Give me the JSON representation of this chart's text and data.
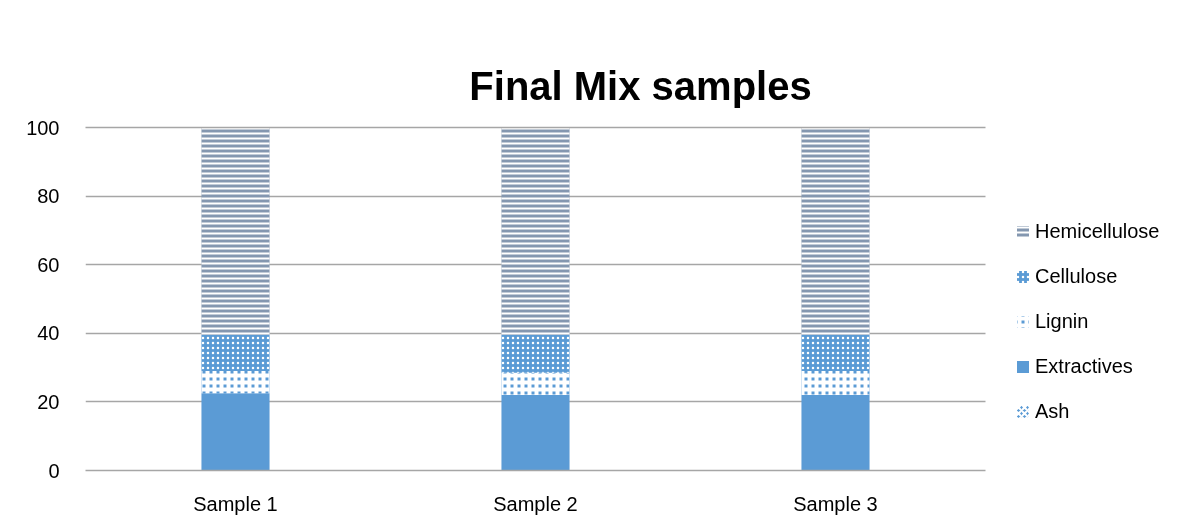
{
  "chart_data": {
    "type": "bar",
    "title": "Final Mix samples",
    "categories": [
      "Sample 1",
      "Sample 2",
      "Sample 3"
    ],
    "stacked": true,
    "series": [
      {
        "name": "Ash",
        "color": "#5b9bd5",
        "values": [
          0,
          0,
          0
        ]
      },
      {
        "name": "Extractives",
        "color": "#5b9bd5",
        "values": [
          22.5,
          22,
          22
        ]
      },
      {
        "name": "Lignin",
        "color": "#5b9bd5",
        "values": [
          6.5,
          6.5,
          7
        ]
      },
      {
        "name": "Cellulose",
        "color": "#5b9bd5",
        "values": [
          10.5,
          11,
          10.5
        ]
      },
      {
        "name": "Hemicellulose",
        "color": "#8497b0",
        "values": [
          60.5,
          60.5,
          60.5
        ]
      }
    ],
    "ylim": [
      0,
      100
    ],
    "yticks": [
      0,
      20,
      40,
      60,
      80,
      100
    ],
    "grid": "y",
    "legend": "right"
  }
}
